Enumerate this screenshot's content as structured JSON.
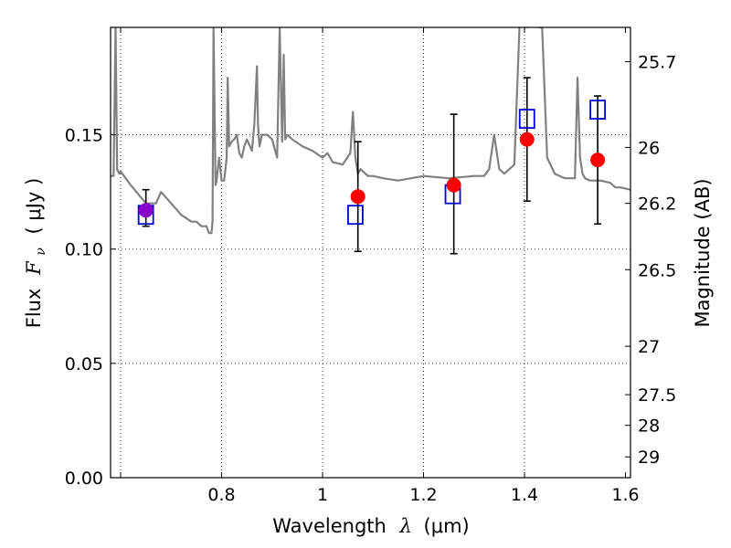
{
  "chart_data": {
    "type": "scatter",
    "xlabel_prefix": "Wavelength",
    "xlabel_symbol": "λ",
    "xlabel_unit": "(μm)",
    "ylabel_prefix": "Flux",
    "ylabel_symbol": "F",
    "ylabel_subscript": "ν",
    "ylabel_unit": "( μJy )",
    "y2label": "Magnitude (AB)",
    "xlim": [
      0.58,
      1.61
    ],
    "ylim": [
      0.0,
      0.197
    ],
    "grid": true,
    "x_ticks": [
      {
        "value": 0.6,
        "label": "",
        "grid": true
      },
      {
        "value": 0.8,
        "label": "0.8",
        "grid": true
      },
      {
        "value": 1.0,
        "label": "1",
        "grid": true
      },
      {
        "value": 1.2,
        "label": "1.2",
        "grid": true
      },
      {
        "value": 1.4,
        "label": "1.4",
        "grid": true
      },
      {
        "value": 1.6,
        "label": "1.6",
        "grid": false
      }
    ],
    "y_ticks": [
      {
        "value": 0.0,
        "label": "0.00"
      },
      {
        "value": 0.05,
        "label": "0.05"
      },
      {
        "value": 0.1,
        "label": "0.10"
      },
      {
        "value": 0.15,
        "label": "0.15"
      }
    ],
    "mag_ticks": [
      {
        "flux": 0.182,
        "label": "25.7"
      },
      {
        "flux": 0.1445,
        "label": "26"
      },
      {
        "flux": 0.12,
        "label": "26.2"
      },
      {
        "flux": 0.091,
        "label": "26.5"
      },
      {
        "flux": 0.0575,
        "label": "27"
      },
      {
        "flux": 0.0363,
        "label": "27.5"
      },
      {
        "flux": 0.0229,
        "label": "28"
      },
      {
        "flux": 0.0091,
        "label": "29"
      }
    ],
    "spectrum": {
      "name": "",
      "color": "#808080",
      "x": [
        0.58,
        0.586,
        0.59,
        0.593,
        0.597,
        0.6,
        0.62,
        0.65,
        0.67,
        0.68,
        0.7,
        0.72,
        0.74,
        0.75,
        0.76,
        0.77,
        0.775,
        0.78,
        0.782,
        0.784,
        0.788,
        0.79,
        0.795,
        0.8,
        0.805,
        0.81,
        0.812,
        0.815,
        0.82,
        0.825,
        0.83,
        0.835,
        0.84,
        0.845,
        0.85,
        0.86,
        0.865,
        0.87,
        0.872,
        0.875,
        0.88,
        0.89,
        0.9,
        0.91,
        0.915,
        0.92,
        0.923,
        0.926,
        0.93,
        0.94,
        0.96,
        0.98,
        1.0,
        1.01,
        1.02,
        1.04,
        1.055,
        1.06,
        1.065,
        1.07,
        1.075,
        1.08,
        1.09,
        1.1,
        1.12,
        1.15,
        1.2,
        1.25,
        1.3,
        1.32,
        1.33,
        1.34,
        1.35,
        1.36,
        1.38,
        1.39,
        1.395,
        1.405,
        1.42,
        1.43,
        1.435,
        1.445,
        1.46,
        1.48,
        1.5,
        1.505,
        1.51,
        1.515,
        1.52,
        1.53,
        1.55,
        1.57,
        1.58,
        1.59,
        1.61
      ],
      "y": [
        0.132,
        0.132,
        0.197,
        0.135,
        0.133,
        0.134,
        0.128,
        0.12,
        0.12,
        0.125,
        0.12,
        0.115,
        0.112,
        0.112,
        0.11,
        0.11,
        0.107,
        0.107,
        0.112,
        0.197,
        0.128,
        0.13,
        0.14,
        0.13,
        0.13,
        0.14,
        0.175,
        0.145,
        0.147,
        0.148,
        0.15,
        0.142,
        0.14,
        0.145,
        0.148,
        0.143,
        0.155,
        0.18,
        0.155,
        0.145,
        0.15,
        0.15,
        0.148,
        0.14,
        0.197,
        0.147,
        0.185,
        0.148,
        0.15,
        0.148,
        0.145,
        0.143,
        0.14,
        0.142,
        0.138,
        0.137,
        0.142,
        0.16,
        0.14,
        0.133,
        0.135,
        0.134,
        0.132,
        0.132,
        0.131,
        0.13,
        0.132,
        0.131,
        0.132,
        0.132,
        0.135,
        0.15,
        0.135,
        0.133,
        0.137,
        0.197,
        0.2,
        0.197,
        0.2,
        0.197,
        0.197,
        0.14,
        0.133,
        0.131,
        0.131,
        0.175,
        0.14,
        0.133,
        0.131,
        0.13,
        0.13,
        0.129,
        0.127,
        0.127,
        0.126
      ]
    },
    "series": [
      {
        "type": "errorbar",
        "color": "#000000",
        "x": [
          0.65,
          1.07,
          1.26,
          1.405,
          1.545
        ],
        "y": [
          0.118,
          0.123,
          0.128,
          0.148,
          0.139
        ],
        "ylow": [
          0.11,
          0.099,
          0.098,
          0.121,
          0.111
        ],
        "yhigh": [
          0.126,
          0.147,
          0.159,
          0.175,
          0.167
        ]
      },
      {
        "type": "scatter-square-open",
        "color": "#0000cc",
        "x": [
          0.65,
          1.065,
          1.258,
          1.405,
          1.545
        ],
        "y": [
          0.115,
          0.115,
          0.124,
          0.157,
          0.161
        ]
      },
      {
        "type": "scatter-circle",
        "color": "#ff0000",
        "x": [
          1.07,
          1.26,
          1.405,
          1.545
        ],
        "y": [
          0.123,
          0.128,
          0.148,
          0.139
        ]
      },
      {
        "type": "scatter-circle",
        "color": "#8800cc",
        "x": [
          0.65
        ],
        "y": [
          0.117
        ]
      }
    ]
  }
}
